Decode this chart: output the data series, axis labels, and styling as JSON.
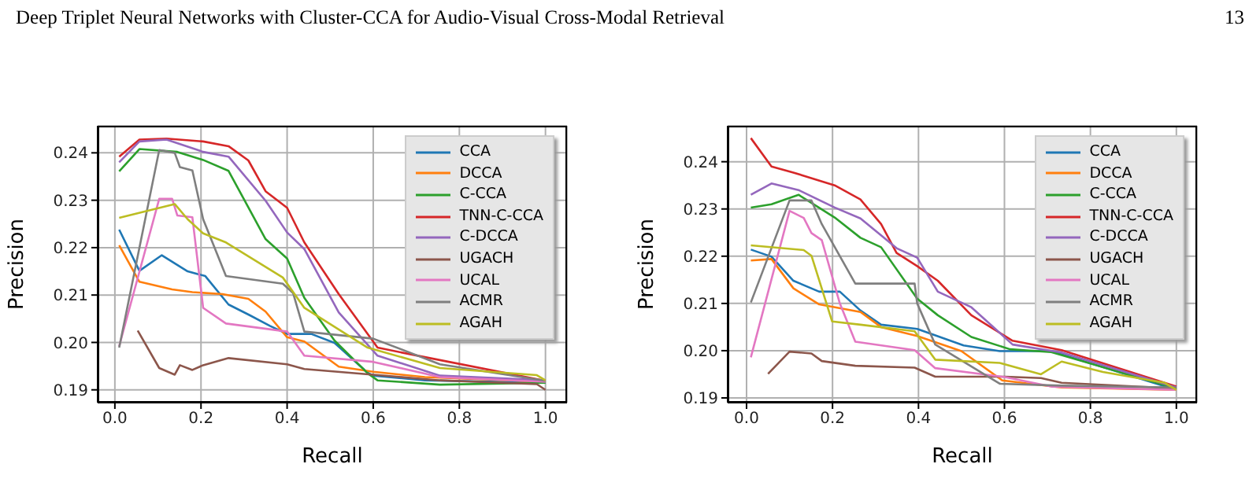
{
  "chart_data": [
    {
      "type": "line",
      "annotations": [
        "Deep Triplet Neural Networks with Cluster-CCA for Audio-Visual Cross-Modal Retrieval",
        "13"
      ],
      "xlabel": "Recall",
      "ylabel": "Precision",
      "xlim": [
        -0.04,
        1.05
      ],
      "ylim": [
        0.1873,
        0.2457
      ],
      "xticks": [
        {
          "value": 0,
          "label": "0.0"
        },
        {
          "value": 0.2,
          "label": "0.2"
        },
        {
          "value": 0.4,
          "label": "0.4"
        },
        {
          "value": 0.6,
          "label": "0.6"
        },
        {
          "value": 0.8,
          "label": "0.8"
        },
        {
          "value": 1,
          "label": "1.0"
        }
      ],
      "yticks": [
        {
          "value": 0.19,
          "label": "0.19"
        },
        {
          "value": 0.2,
          "label": "0.20"
        },
        {
          "value": 0.21,
          "label": "0.21"
        },
        {
          "value": 0.22,
          "label": "0.22"
        },
        {
          "value": 0.23,
          "label": "0.23"
        },
        {
          "value": 0.24,
          "label": "0.24"
        }
      ],
      "grid": true,
      "legend": "top right",
      "series": [
        {
          "name": "CCA",
          "color": "#1f77b4",
          "x": [
            0.01,
            0.057,
            0.109,
            0.169,
            0.21,
            0.264,
            0.312,
            0.36,
            0.4,
            0.456,
            0.51,
            0.587,
            0.6,
            0.72,
            1.0
          ],
          "values": [
            0.2238,
            0.2151,
            0.2184,
            0.215,
            0.214,
            0.208,
            0.2058,
            0.2035,
            0.2018,
            0.2018,
            0.1999,
            0.1936,
            0.193,
            0.192,
            0.1915
          ]
        },
        {
          "name": "DCCA",
          "color": "#ff7f0e",
          "x": [
            0.01,
            0.057,
            0.133,
            0.18,
            0.25,
            0.31,
            0.35,
            0.4,
            0.44,
            0.52,
            0.6,
            0.72,
            1.0
          ],
          "values": [
            0.2205,
            0.2128,
            0.2112,
            0.2106,
            0.2102,
            0.2092,
            0.2065,
            0.2011,
            0.2002,
            0.1949,
            0.1938,
            0.1927,
            0.1917
          ]
        },
        {
          "name": "C-CCA",
          "color": "#2ca02c",
          "x": [
            0.01,
            0.057,
            0.145,
            0.205,
            0.264,
            0.35,
            0.4,
            0.44,
            0.51,
            0.587,
            0.61,
            0.755,
            1.0
          ],
          "values": [
            0.2361,
            0.2408,
            0.2402,
            0.2385,
            0.2362,
            0.2218,
            0.2177,
            0.2094,
            0.2004,
            0.1935,
            0.192,
            0.1911,
            0.1915
          ]
        },
        {
          "name": "TNN-C-CCA",
          "color": "#d62728",
          "x": [
            0.01,
            0.057,
            0.12,
            0.205,
            0.264,
            0.31,
            0.35,
            0.4,
            0.44,
            0.52,
            0.61,
            0.72,
            1.0
          ],
          "values": [
            0.2392,
            0.2428,
            0.243,
            0.2424,
            0.2414,
            0.2384,
            0.2319,
            0.2284,
            0.2211,
            0.2102,
            0.1989,
            0.1969,
            0.1919
          ]
        },
        {
          "name": "C-DCCA",
          "color": "#9467bd",
          "x": [
            0.01,
            0.057,
            0.12,
            0.205,
            0.264,
            0.35,
            0.4,
            0.44,
            0.52,
            0.61,
            0.755,
            1.0
          ],
          "values": [
            0.238,
            0.2424,
            0.2428,
            0.2402,
            0.2392,
            0.2299,
            0.2232,
            0.2197,
            0.2063,
            0.1972,
            0.193,
            0.192
          ]
        },
        {
          "name": "UGACH",
          "color": "#8c564b",
          "x": [
            0.053,
            0.103,
            0.139,
            0.151,
            0.18,
            0.205,
            0.264,
            0.4,
            0.44,
            0.6,
            0.755,
            0.98,
            1.0
          ],
          "values": [
            0.2025,
            0.1946,
            0.1932,
            0.1952,
            0.1942,
            0.1952,
            0.1967,
            0.1954,
            0.1944,
            0.1932,
            0.192,
            0.1912,
            0.19
          ]
        },
        {
          "name": "UCAL",
          "color": "#e377c2",
          "x": [
            0.01,
            0.103,
            0.133,
            0.145,
            0.18,
            0.205,
            0.258,
            0.4,
            0.44,
            0.6,
            0.755,
            1.0
          ],
          "values": [
            0.1992,
            0.2303,
            0.2303,
            0.2268,
            0.2264,
            0.2073,
            0.204,
            0.2023,
            0.1972,
            0.1959,
            0.1927,
            0.1917
          ]
        },
        {
          "name": "ACMR",
          "color": "#7f7f7f",
          "x": [
            0.01,
            0.103,
            0.139,
            0.151,
            0.18,
            0.205,
            0.258,
            0.39,
            0.414,
            0.44,
            0.6,
            0.755,
            1.0
          ],
          "values": [
            0.1989,
            0.2406,
            0.24,
            0.237,
            0.2363,
            0.226,
            0.214,
            0.2124,
            0.2104,
            0.2023,
            0.2008,
            0.1954,
            0.1919
          ]
        },
        {
          "name": "AGAH",
          "color": "#bcbd22",
          "x": [
            0.01,
            0.139,
            0.169,
            0.205,
            0.258,
            0.39,
            0.44,
            0.587,
            0.755,
            0.98,
            1.0
          ],
          "values": [
            0.2263,
            0.2292,
            0.226,
            0.223,
            0.2211,
            0.2137,
            0.2073,
            0.1989,
            0.1946,
            0.1931,
            0.192
          ]
        }
      ]
    },
    {
      "type": "line",
      "xlabel": "Recall",
      "ylabel": "Precision",
      "xlim": [
        -0.044,
        1.048
      ],
      "ylim": [
        0.189,
        0.2476
      ],
      "xticks": [
        {
          "value": 0,
          "label": "0.0"
        },
        {
          "value": 0.2,
          "label": "0.2"
        },
        {
          "value": 0.4,
          "label": "0.4"
        },
        {
          "value": 0.6,
          "label": "0.6"
        },
        {
          "value": 0.8,
          "label": "0.8"
        },
        {
          "value": 1,
          "label": "1.0"
        }
      ],
      "yticks": [
        {
          "value": 0.19,
          "label": "0.19"
        },
        {
          "value": 0.2,
          "label": "0.20"
        },
        {
          "value": 0.21,
          "label": "0.21"
        },
        {
          "value": 0.22,
          "label": "0.22"
        },
        {
          "value": 0.23,
          "label": "0.23"
        },
        {
          "value": 0.24,
          "label": "0.24"
        }
      ],
      "grid": true,
      "legend": "top right",
      "series": [
        {
          "name": "CCA",
          "color": "#1f77b4",
          "x": [
            0.01,
            0.058,
            0.109,
            0.169,
            0.217,
            0.265,
            0.313,
            0.397,
            0.505,
            0.589,
            0.709,
            1.0
          ],
          "values": [
            0.2214,
            0.2199,
            0.2148,
            0.2125,
            0.2125,
            0.2085,
            0.2055,
            0.2046,
            0.2011,
            0.1999,
            0.1999,
            0.1917
          ]
        },
        {
          "name": "DCCA",
          "color": "#ff7f0e",
          "x": [
            0.01,
            0.058,
            0.109,
            0.169,
            0.265,
            0.313,
            0.397,
            0.5,
            0.595,
            0.733,
            1.0
          ],
          "values": [
            0.2191,
            0.2194,
            0.2132,
            0.2098,
            0.2082,
            0.205,
            0.2031,
            0.1999,
            0.1937,
            0.1922,
            0.1917
          ]
        },
        {
          "name": "C-CCA",
          "color": "#2ca02c",
          "x": [
            0.01,
            0.058,
            0.121,
            0.205,
            0.265,
            0.313,
            0.397,
            0.445,
            0.523,
            0.613,
            0.709,
            1.0
          ],
          "values": [
            0.2303,
            0.231,
            0.233,
            0.2282,
            0.2239,
            0.2219,
            0.211,
            0.2075,
            0.2029,
            0.2003,
            0.1997,
            0.192
          ]
        },
        {
          "name": "TNN-C-CCA",
          "color": "#d62728",
          "x": [
            0.01,
            0.058,
            0.109,
            0.205,
            0.265,
            0.313,
            0.349,
            0.397,
            0.445,
            0.523,
            0.619,
            0.733,
            1.0
          ],
          "values": [
            0.245,
            0.239,
            0.2377,
            0.235,
            0.232,
            0.2268,
            0.2207,
            0.2179,
            0.2148,
            0.2075,
            0.2021,
            0.2001,
            0.1924
          ]
        },
        {
          "name": "C-DCCA",
          "color": "#9467bd",
          "x": [
            0.01,
            0.058,
            0.121,
            0.205,
            0.265,
            0.313,
            0.349,
            0.397,
            0.445,
            0.523,
            0.619,
            0.733,
            1.0
          ],
          "values": [
            0.233,
            0.2354,
            0.234,
            0.2303,
            0.228,
            0.2244,
            0.2217,
            0.2197,
            0.2125,
            0.2092,
            0.2013,
            0.1996,
            0.1922
          ]
        },
        {
          "name": "UGACH",
          "color": "#8c564b",
          "x": [
            0.05,
            0.1,
            0.151,
            0.175,
            0.253,
            0.391,
            0.439,
            0.601,
            0.685,
            0.733,
            1.0
          ],
          "values": [
            0.1951,
            0.1998,
            0.1994,
            0.1978,
            0.1968,
            0.1964,
            0.1945,
            0.1945,
            0.1942,
            0.1932,
            0.192
          ]
        },
        {
          "name": "UCAL",
          "color": "#e377c2",
          "x": [
            0.01,
            0.1,
            0.133,
            0.151,
            0.175,
            0.217,
            0.253,
            0.391,
            0.439,
            0.601,
            0.709,
            1.0
          ],
          "values": [
            0.1986,
            0.2296,
            0.2281,
            0.2249,
            0.2234,
            0.21,
            0.2019,
            0.2001,
            0.1963,
            0.1944,
            0.1924,
            0.1917
          ]
        },
        {
          "name": "ACMR",
          "color": "#7f7f7f",
          "x": [
            0.01,
            0.1,
            0.151,
            0.175,
            0.253,
            0.391,
            0.397,
            0.439,
            0.589,
            0.733,
            1.0
          ],
          "values": [
            0.2102,
            0.2318,
            0.2318,
            0.2268,
            0.2142,
            0.2142,
            0.21,
            0.2013,
            0.193,
            0.1926,
            0.1922
          ]
        },
        {
          "name": "AGAH",
          "color": "#bcbd22",
          "x": [
            0.01,
            0.133,
            0.151,
            0.199,
            0.265,
            0.391,
            0.439,
            0.589,
            0.685,
            0.733,
            0.829,
            0.973,
            1.0
          ],
          "values": [
            0.2223,
            0.2213,
            0.2201,
            0.2062,
            0.2055,
            0.2041,
            0.1981,
            0.1974,
            0.195,
            0.1977,
            0.1955,
            0.1932,
            0.1917
          ]
        }
      ]
    }
  ]
}
